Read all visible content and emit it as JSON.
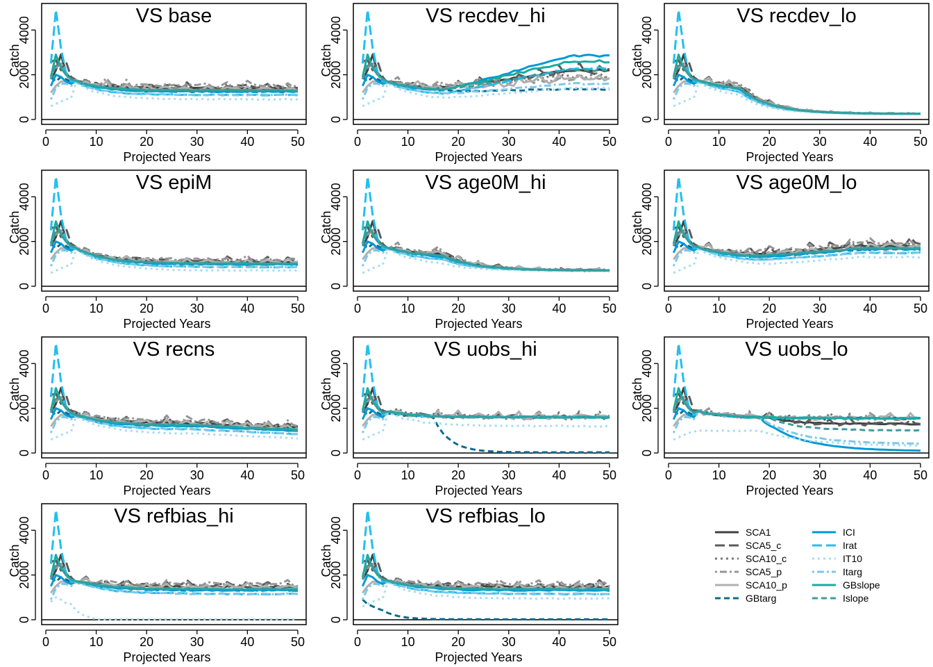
{
  "chart_data": {
    "type": "line",
    "panels": [
      {
        "title": "VS base",
        "scenario": "base"
      },
      {
        "title": "VS recdev_hi",
        "scenario": "recdev_hi"
      },
      {
        "title": "VS recdev_lo",
        "scenario": "recdev_lo"
      },
      {
        "title": "VS epiM",
        "scenario": "epiM"
      },
      {
        "title": "VS age0M_hi",
        "scenario": "age0M_hi"
      },
      {
        "title": "VS age0M_lo",
        "scenario": "age0M_lo"
      },
      {
        "title": "VS recns",
        "scenario": "recns"
      },
      {
        "title": "VS uobs_hi",
        "scenario": "uobs_hi"
      },
      {
        "title": "VS uobs_lo",
        "scenario": "uobs_lo"
      },
      {
        "title": "VS refbias_hi",
        "scenario": "refbias_hi"
      },
      {
        "title": "VS refbias_lo",
        "scenario": "refbias_lo"
      }
    ],
    "xlabel": "Projected Years",
    "ylabel": "Catch",
    "xlim": [
      0,
      50
    ],
    "ylim": [
      0,
      5000
    ],
    "xticks": [
      0,
      10,
      20,
      30,
      40,
      50
    ],
    "yticks": [
      0,
      2000,
      4000
    ],
    "series": [
      {
        "name": "SCA1",
        "color": "#404040",
        "dash": "solid",
        "width": 3
      },
      {
        "name": "SCA5_c",
        "color": "#5a5a5a",
        "dash": "longdash",
        "width": 3
      },
      {
        "name": "SCA10_c",
        "color": "#777777",
        "dash": "dotted",
        "width": 3
      },
      {
        "name": "SCA5_p",
        "color": "#959595",
        "dash": "dotdash",
        "width": 3
      },
      {
        "name": "SCA10_p",
        "color": "#b0b0b0",
        "dash": "solid",
        "width": 3
      },
      {
        "name": "GBtarg",
        "color": "#0b6c8e",
        "dash": "dashed",
        "width": 3
      },
      {
        "name": "ICI",
        "color": "#0099d6",
        "dash": "solid",
        "width": 3
      },
      {
        "name": "Irat",
        "color": "#22bfee",
        "dash": "longdash",
        "width": 3
      },
      {
        "name": "IT10",
        "color": "#a6dcf4",
        "dash": "dotted",
        "width": 3
      },
      {
        "name": "Itarg",
        "color": "#7bc8ea",
        "dash": "dotdash",
        "width": 3
      },
      {
        "name": "GBslope",
        "color": "#1aab9e",
        "dash": "solid",
        "width": 3
      },
      {
        "name": "Islope",
        "color": "#3f9b9e",
        "dash": "dashed",
        "width": 3
      }
    ],
    "legend": {
      "position": "bottom-right",
      "columns": [
        [
          "SCA1",
          "SCA5_c",
          "SCA10_c",
          "SCA5_p",
          "SCA10_p",
          "GBtarg"
        ],
        [
          "ICI",
          "Irat",
          "IT10",
          "Itarg",
          "GBslope",
          "Islope"
        ]
      ]
    },
    "approx_values": {
      "note_years": [
        1,
        2,
        3,
        4,
        5,
        8,
        10,
        15,
        20,
        25,
        30,
        35,
        40,
        45,
        50
      ],
      "early_years_all_panels": {
        "Irat": [
          2500,
          4900,
          3200,
          2100,
          1800
        ],
        "SCA5_c": [
          2600,
          2700,
          2200,
          2600,
          1900
        ],
        "GBslope": [
          1900,
          2900,
          2300,
          2000,
          1800
        ],
        "SCA1": [
          1800,
          2200,
          2900,
          2100,
          1800
        ],
        "IT10": [
          700,
          900,
          1000,
          1100,
          1000
        ]
      }
    }
  }
}
